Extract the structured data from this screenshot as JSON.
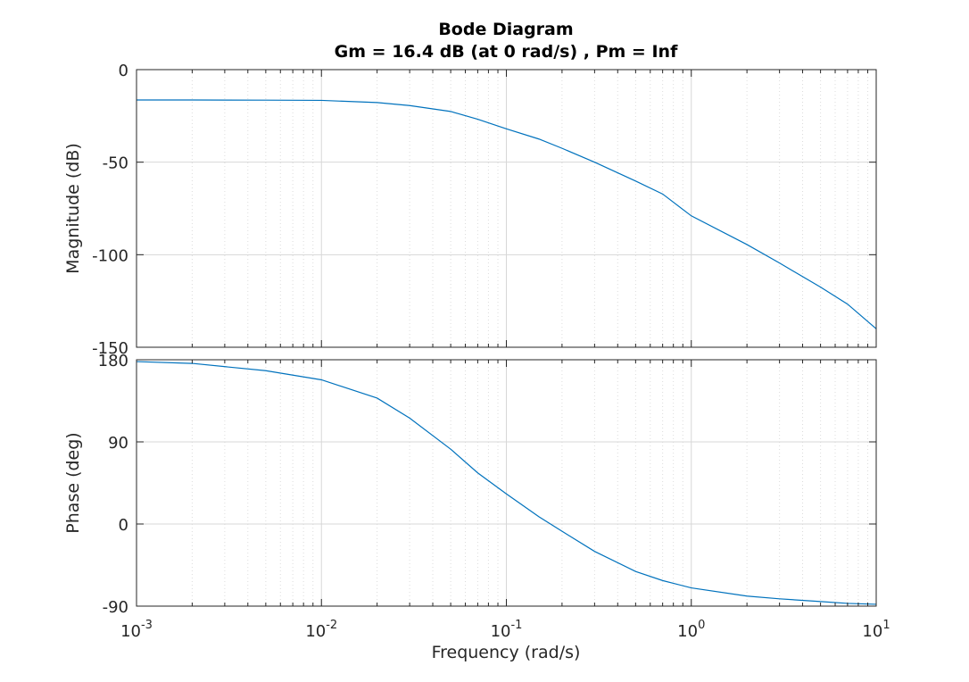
{
  "chart_data": {
    "type": "line",
    "title": "Bode Diagram",
    "subtitle": "Gm = 16.4 dB (at 0 rad/s) ,  Pm = Inf",
    "xlabel": "Frequency  (rad/s)",
    "xscale": "log",
    "xlim": [
      0.001,
      10
    ],
    "x_ticks": [
      {
        "value": 0.001,
        "base": "10",
        "exp": "-3"
      },
      {
        "value": 0.01,
        "base": "10",
        "exp": "-2"
      },
      {
        "value": 0.1,
        "base": "10",
        "exp": "-1"
      },
      {
        "value": 1,
        "base": "10",
        "exp": "0"
      },
      {
        "value": 10,
        "base": "10",
        "exp": "1"
      }
    ],
    "grid": true,
    "color": "#0072bd",
    "panels": [
      {
        "name": "magnitude",
        "ylabel": "Magnitude (dB)",
        "ylim": [
          -150,
          0
        ],
        "yticks": [
          0,
          -50,
          -100,
          -150
        ],
        "ytick_labels": [
          "0",
          "-50",
          "-100",
          "-150"
        ],
        "series": [
          {
            "x": [
              0.001,
              0.002,
              0.005,
              0.01,
              0.02,
              0.03,
              0.05,
              0.07,
              0.1,
              0.15,
              0.2,
              0.3,
              0.5,
              0.7,
              1,
              2,
              3,
              5,
              7,
              10
            ],
            "y": [
              -16.4,
              -16.4,
              -16.5,
              -16.6,
              -17.8,
              -19.4,
              -22.6,
              -26.8,
              -32,
              -37.5,
              -42.5,
              -50,
              -60.2,
              -67.2,
              -79,
              -94.5,
              -104.5,
              -117.5,
              -126.7,
              -140
            ]
          }
        ]
      },
      {
        "name": "phase",
        "ylabel": "Phase (deg)",
        "ylim": [
          -90,
          180
        ],
        "yticks": [
          180,
          90,
          0,
          -90
        ],
        "ytick_labels": [
          "180",
          "90",
          "0",
          "-90"
        ],
        "series": [
          {
            "x": [
              0.001,
              0.002,
              0.005,
              0.01,
              0.02,
              0.03,
              0.05,
              0.07,
              0.1,
              0.15,
              0.2,
              0.3,
              0.5,
              0.7,
              1,
              2,
              3,
              5,
              7,
              10
            ],
            "y": [
              178,
              176,
              168,
              158,
              138,
              116,
              82,
              56,
              33,
              8,
              -8,
              -30,
              -52,
              -62,
              -70,
              -79,
              -82,
              -85,
              -87,
              -88
            ]
          }
        ]
      }
    ]
  }
}
